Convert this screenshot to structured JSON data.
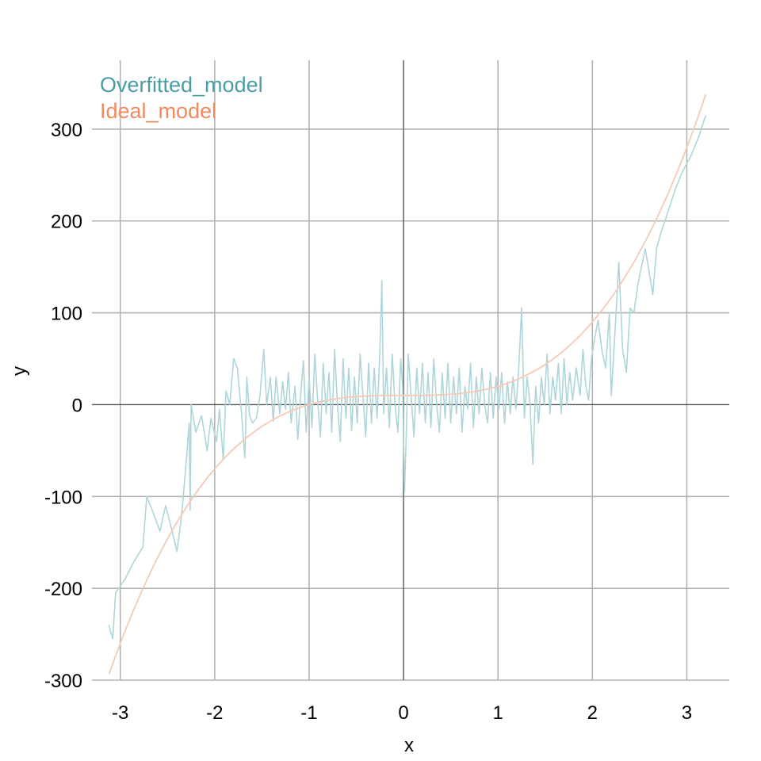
{
  "chart_data": {
    "type": "line",
    "title": "",
    "xlabel": "x",
    "ylabel": "y",
    "xlim": [
      -3.3,
      3.45
    ],
    "ylim": [
      -300,
      375
    ],
    "xticks": [
      -3,
      -2,
      -1,
      0,
      1,
      2,
      3
    ],
    "yticks": [
      -300,
      -200,
      -100,
      0,
      100,
      200,
      300
    ],
    "xtick_labels": [
      "-3",
      "-2",
      "-1",
      "0",
      "1",
      "2",
      "3"
    ],
    "ytick_labels": [
      "-300",
      "-200",
      "-100",
      "0",
      "100",
      "200",
      "300"
    ],
    "grid": true,
    "zero_lines": true,
    "legend_position": "top-left",
    "series": [
      {
        "name": "Overfitted_model",
        "color": "#4a9da6",
        "line_color": "#aed6da",
        "points": [
          [
            -3.12,
            -240
          ],
          [
            -3.08,
            -255
          ],
          [
            -3.05,
            -205
          ],
          [
            -2.95,
            -190
          ],
          [
            -2.85,
            -170
          ],
          [
            -2.76,
            -155
          ],
          [
            -2.72,
            -100
          ],
          [
            -2.65,
            -118
          ],
          [
            -2.58,
            -138
          ],
          [
            -2.52,
            -110
          ],
          [
            -2.45,
            -138
          ],
          [
            -2.4,
            -160
          ],
          [
            -2.35,
            -120
          ],
          [
            -2.3,
            -60
          ],
          [
            -2.27,
            -20
          ],
          [
            -2.26,
            -115
          ],
          [
            -2.25,
            0
          ],
          [
            -2.2,
            -30
          ],
          [
            -2.14,
            -12
          ],
          [
            -2.08,
            -50
          ],
          [
            -2.04,
            -15
          ],
          [
            -1.98,
            -40
          ],
          [
            -1.95,
            -5
          ],
          [
            -1.91,
            -60
          ],
          [
            -1.88,
            15
          ],
          [
            -1.84,
            0
          ],
          [
            -1.8,
            50
          ],
          [
            -1.76,
            40
          ],
          [
            -1.72,
            -5
          ],
          [
            -1.68,
            -58
          ],
          [
            -1.66,
            30
          ],
          [
            -1.63,
            -12
          ],
          [
            -1.6,
            -20
          ],
          [
            -1.56,
            -15
          ],
          [
            -1.52,
            10
          ],
          [
            -1.48,
            60
          ],
          [
            -1.45,
            0
          ],
          [
            -1.41,
            30
          ],
          [
            -1.38,
            -18
          ],
          [
            -1.35,
            30
          ],
          [
            -1.31,
            -10
          ],
          [
            -1.28,
            25
          ],
          [
            -1.25,
            -5
          ],
          [
            -1.22,
            35
          ],
          [
            -1.19,
            -20
          ],
          [
            -1.15,
            20
          ],
          [
            -1.12,
            -38
          ],
          [
            -1.09,
            10
          ],
          [
            -1.06,
            48
          ],
          [
            -1.03,
            -30
          ],
          [
            -1.0,
            30
          ],
          [
            -0.97,
            -25
          ],
          [
            -0.94,
            55
          ],
          [
            -0.91,
            5
          ],
          [
            -0.88,
            -35
          ],
          [
            -0.85,
            45
          ],
          [
            -0.82,
            -10
          ],
          [
            -0.79,
            35
          ],
          [
            -0.76,
            -30
          ],
          [
            -0.73,
            60
          ],
          [
            -0.7,
            0
          ],
          [
            -0.67,
            -40
          ],
          [
            -0.64,
            50
          ],
          [
            -0.61,
            -15
          ],
          [
            -0.58,
            40
          ],
          [
            -0.55,
            -28
          ],
          [
            -0.52,
            30
          ],
          [
            -0.49,
            -20
          ],
          [
            -0.46,
            55
          ],
          [
            -0.43,
            10
          ],
          [
            -0.4,
            -35
          ],
          [
            -0.37,
            45
          ],
          [
            -0.34,
            -20
          ],
          [
            -0.31,
            40
          ],
          [
            -0.28,
            -15
          ],
          [
            -0.25,
            60
          ],
          [
            -0.23,
            135
          ],
          [
            -0.21,
            -10
          ],
          [
            -0.18,
            40
          ],
          [
            -0.15,
            -25
          ],
          [
            -0.12,
            55
          ],
          [
            -0.09,
            0
          ],
          [
            -0.06,
            -30
          ],
          [
            -0.03,
            50
          ],
          [
            -0.01,
            20
          ],
          [
            0.01,
            -95
          ],
          [
            0.03,
            -30
          ],
          [
            0.05,
            55
          ],
          [
            0.08,
            10
          ],
          [
            0.11,
            -35
          ],
          [
            0.14,
            40
          ],
          [
            0.17,
            -10
          ],
          [
            0.2,
            45
          ],
          [
            0.23,
            -20
          ],
          [
            0.26,
            35
          ],
          [
            0.29,
            -25
          ],
          [
            0.32,
            50
          ],
          [
            0.35,
            0
          ],
          [
            0.38,
            -30
          ],
          [
            0.41,
            35
          ],
          [
            0.44,
            -15
          ],
          [
            0.47,
            45
          ],
          [
            0.5,
            -20
          ],
          [
            0.53,
            30
          ],
          [
            0.56,
            -10
          ],
          [
            0.59,
            40
          ],
          [
            0.62,
            -30
          ],
          [
            0.65,
            20
          ],
          [
            0.68,
            -5
          ],
          [
            0.71,
            45
          ],
          [
            0.74,
            -25
          ],
          [
            0.77,
            30
          ],
          [
            0.8,
            -10
          ],
          [
            0.83,
            40
          ],
          [
            0.86,
            0
          ],
          [
            0.89,
            -20
          ],
          [
            0.92,
            35
          ],
          [
            0.95,
            -15
          ],
          [
            0.98,
            30
          ],
          [
            1.01,
            -5
          ],
          [
            1.04,
            35
          ],
          [
            1.07,
            -20
          ],
          [
            1.1,
            25
          ],
          [
            1.13,
            -10
          ],
          [
            1.16,
            30
          ],
          [
            1.19,
            -5
          ],
          [
            1.22,
            40
          ],
          [
            1.25,
            105
          ],
          [
            1.28,
            -15
          ],
          [
            1.31,
            30
          ],
          [
            1.34,
            0
          ],
          [
            1.37,
            -65
          ],
          [
            1.4,
            20
          ],
          [
            1.43,
            -20
          ],
          [
            1.46,
            30
          ],
          [
            1.49,
            0
          ],
          [
            1.52,
            55
          ],
          [
            1.55,
            -10
          ],
          [
            1.58,
            30
          ],
          [
            1.61,
            5
          ],
          [
            1.64,
            45
          ],
          [
            1.67,
            -10
          ],
          [
            1.7,
            50
          ],
          [
            1.73,
            0
          ],
          [
            1.76,
            35
          ],
          [
            1.79,
            5
          ],
          [
            1.83,
            40
          ],
          [
            1.87,
            10
          ],
          [
            1.9,
            60
          ],
          [
            1.93,
            20
          ],
          [
            1.96,
            5
          ],
          [
            1.99,
            50
          ],
          [
            2.02,
            70
          ],
          [
            2.06,
            92
          ],
          [
            2.1,
            60
          ],
          [
            2.14,
            40
          ],
          [
            2.18,
            100
          ],
          [
            2.2,
            10
          ],
          [
            2.24,
            80
          ],
          [
            2.28,
            155
          ],
          [
            2.32,
            60
          ],
          [
            2.36,
            35
          ],
          [
            2.4,
            105
          ],
          [
            2.44,
            100
          ],
          [
            2.48,
            130
          ],
          [
            2.52,
            150
          ],
          [
            2.56,
            170
          ],
          [
            2.6,
            145
          ],
          [
            2.64,
            120
          ],
          [
            2.68,
            170
          ],
          [
            2.72,
            185
          ],
          [
            2.8,
            210
          ],
          [
            2.88,
            235
          ],
          [
            2.96,
            255
          ],
          [
            3.04,
            270
          ],
          [
            3.12,
            290
          ],
          [
            3.2,
            315
          ]
        ]
      },
      {
        "name": "Ideal_model",
        "color": "#f08a5d",
        "line_color": "#f6c9b5",
        "function": "10 + 10 * x^3"
      }
    ]
  },
  "legend": {
    "overfitted_label": "Overfitted_model",
    "ideal_label": "Ideal_model"
  },
  "colors": {
    "grid": "#b3b3b3",
    "zero_line": "#555555"
  }
}
